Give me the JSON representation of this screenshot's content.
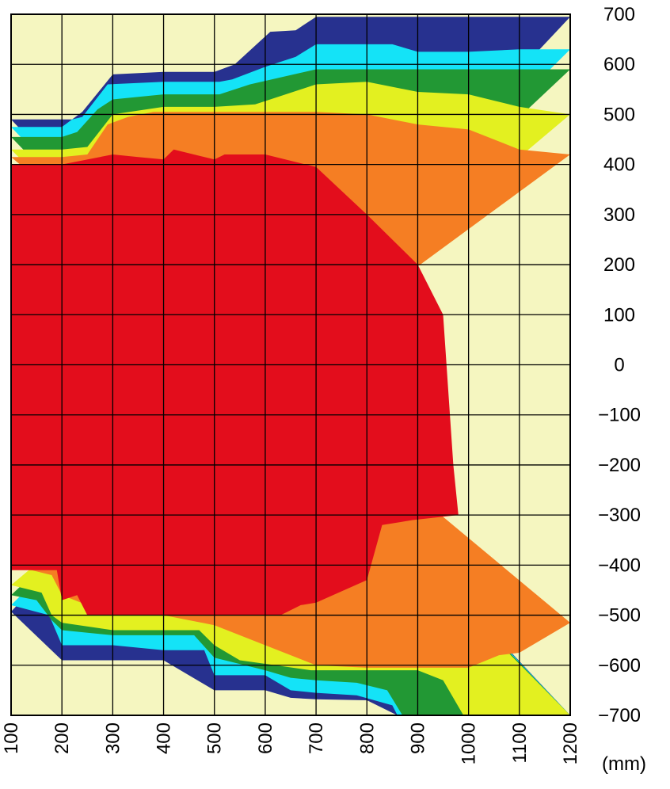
{
  "chart_data": {
    "type": "heatmap",
    "title": "",
    "xlabel": "",
    "ylabel": "",
    "x_unit": "(mm)",
    "xlim": [
      100,
      1200
    ],
    "ylim": [
      -700,
      700
    ],
    "x_ticks": [
      100,
      200,
      300,
      400,
      500,
      600,
      700,
      800,
      900,
      1000,
      1100,
      1200
    ],
    "y_ticks": [
      700,
      600,
      500,
      400,
      300,
      200,
      100,
      0,
      -100,
      -200,
      -300,
      -400,
      -500,
      -600,
      -700
    ],
    "x_tick_labels": [
      "100",
      "200",
      "300",
      "400",
      "500",
      "600",
      "700",
      "800",
      "900",
      "1000",
      "1100",
      "1200"
    ],
    "y_tick_labels": [
      "700",
      "600",
      "500",
      "400",
      "300",
      "200",
      "100",
      "0",
      "−100",
      "−200",
      "−300",
      "−400",
      "−500",
      "−600",
      "−700"
    ],
    "grid": true,
    "legend": "none",
    "colors": {
      "background": "#F5F6C0",
      "navy": "#27318F",
      "cyan": "#14E3F7",
      "green": "#229834",
      "yellow": "#E3F020",
      "orange": "#F57E23",
      "red": "#E30D1C"
    },
    "bands": [
      {
        "color": "navy",
        "upper": [
          [
            100,
            490
          ],
          [
            220,
            490
          ],
          [
            240,
            505
          ],
          [
            300,
            580
          ],
          [
            400,
            585
          ],
          [
            500,
            585
          ],
          [
            540,
            600
          ],
          [
            610,
            665
          ],
          [
            660,
            668
          ],
          [
            700,
            695
          ],
          [
            1200,
            695
          ]
        ],
        "lower": [
          [
            100,
            -493
          ],
          [
            200,
            -590
          ],
          [
            300,
            -590
          ],
          [
            400,
            -590
          ],
          [
            500,
            -650
          ],
          [
            600,
            -650
          ],
          [
            650,
            -665
          ],
          [
            700,
            -668
          ],
          [
            800,
            -670
          ],
          [
            860,
            -700
          ],
          [
            1200,
            -700
          ]
        ]
      },
      {
        "color": "cyan",
        "upper": [
          [
            100,
            475
          ],
          [
            200,
            475
          ],
          [
            220,
            490
          ],
          [
            240,
            495
          ],
          [
            290,
            560
          ],
          [
            400,
            565
          ],
          [
            510,
            565
          ],
          [
            535,
            570
          ],
          [
            600,
            595
          ],
          [
            660,
            615
          ],
          [
            700,
            640
          ],
          [
            850,
            640
          ],
          [
            900,
            625
          ],
          [
            1000,
            625
          ],
          [
            1100,
            630
          ],
          [
            1200,
            630
          ]
        ],
        "lower": [
          [
            100,
            -480
          ],
          [
            175,
            -500
          ],
          [
            200,
            -560
          ],
          [
            300,
            -560
          ],
          [
            400,
            -570
          ],
          [
            480,
            -570
          ],
          [
            500,
            -620
          ],
          [
            600,
            -620
          ],
          [
            650,
            -650
          ],
          [
            700,
            -655
          ],
          [
            780,
            -660
          ],
          [
            850,
            -680
          ],
          [
            860,
            -700
          ],
          [
            1200,
            -700
          ]
        ]
      },
      {
        "color": "green",
        "upper": [
          [
            100,
            455
          ],
          [
            200,
            455
          ],
          [
            230,
            465
          ],
          [
            270,
            510
          ],
          [
            300,
            530
          ],
          [
            400,
            540
          ],
          [
            510,
            540
          ],
          [
            570,
            560
          ],
          [
            700,
            590
          ],
          [
            900,
            590
          ],
          [
            1000,
            590
          ],
          [
            1100,
            590
          ],
          [
            1200,
            590
          ]
        ],
        "lower": [
          [
            100,
            -460
          ],
          [
            150,
            -470
          ],
          [
            180,
            -510
          ],
          [
            200,
            -530
          ],
          [
            300,
            -540
          ],
          [
            400,
            -540
          ],
          [
            460,
            -540
          ],
          [
            500,
            -585
          ],
          [
            600,
            -610
          ],
          [
            650,
            -625
          ],
          [
            700,
            -630
          ],
          [
            780,
            -635
          ],
          [
            840,
            -650
          ],
          [
            870,
            -700
          ],
          [
            1200,
            -700
          ]
        ]
      },
      {
        "color": "yellow",
        "upper": [
          [
            100,
            430
          ],
          [
            200,
            430
          ],
          [
            250,
            435
          ],
          [
            300,
            500
          ],
          [
            400,
            515
          ],
          [
            500,
            515
          ],
          [
            580,
            520
          ],
          [
            700,
            560
          ],
          [
            800,
            565
          ],
          [
            900,
            545
          ],
          [
            1000,
            540
          ],
          [
            1100,
            515
          ],
          [
            1200,
            500
          ]
        ],
        "lower": [
          [
            100,
            -440
          ],
          [
            160,
            -455
          ],
          [
            180,
            -500
          ],
          [
            200,
            -515
          ],
          [
            300,
            -530
          ],
          [
            400,
            -530
          ],
          [
            470,
            -530
          ],
          [
            500,
            -560
          ],
          [
            550,
            -590
          ],
          [
            620,
            -600
          ],
          [
            690,
            -610
          ],
          [
            900,
            -610
          ],
          [
            950,
            -630
          ],
          [
            990,
            -700
          ],
          [
            1200,
            -700
          ]
        ]
      },
      {
        "color": "orange",
        "upper": [
          [
            100,
            415
          ],
          [
            200,
            415
          ],
          [
            250,
            420
          ],
          [
            290,
            480
          ],
          [
            330,
            495
          ],
          [
            380,
            505
          ],
          [
            500,
            505
          ],
          [
            600,
            505
          ],
          [
            700,
            505
          ],
          [
            800,
            500
          ],
          [
            900,
            480
          ],
          [
            1000,
            470
          ],
          [
            1100,
            430
          ],
          [
            1200,
            420
          ]
        ],
        "lower": [
          [
            100,
            -400
          ],
          [
            180,
            -420
          ],
          [
            200,
            -460
          ],
          [
            300,
            -500
          ],
          [
            400,
            -500
          ],
          [
            500,
            -520
          ],
          [
            600,
            -560
          ],
          [
            700,
            -600
          ],
          [
            800,
            -605
          ],
          [
            900,
            -605
          ],
          [
            1000,
            -605
          ],
          [
            1060,
            -580
          ],
          [
            1100,
            -575
          ],
          [
            1200,
            -515
          ]
        ]
      },
      {
        "color": "red",
        "upper": [
          [
            100,
            400
          ],
          [
            200,
            400
          ],
          [
            300,
            420
          ],
          [
            350,
            415
          ],
          [
            400,
            410
          ],
          [
            420,
            430
          ],
          [
            500,
            410
          ],
          [
            520,
            420
          ],
          [
            600,
            420
          ],
          [
            700,
            395
          ],
          [
            800,
            300
          ],
          [
            900,
            200
          ],
          [
            950,
            100
          ],
          [
            970,
            -200
          ],
          [
            980,
            -300
          ]
        ],
        "lower": [
          [
            980,
            -300
          ],
          [
            890,
            -310
          ],
          [
            830,
            -320
          ],
          [
            800,
            -430
          ],
          [
            700,
            -475
          ],
          [
            670,
            -480
          ],
          [
            630,
            -500
          ],
          [
            600,
            -500
          ],
          [
            500,
            -500
          ],
          [
            400,
            -500
          ],
          [
            300,
            -500
          ],
          [
            250,
            -500
          ],
          [
            230,
            -460
          ],
          [
            200,
            -470
          ],
          [
            190,
            -410
          ],
          [
            100,
            -410
          ]
        ]
      }
    ]
  }
}
